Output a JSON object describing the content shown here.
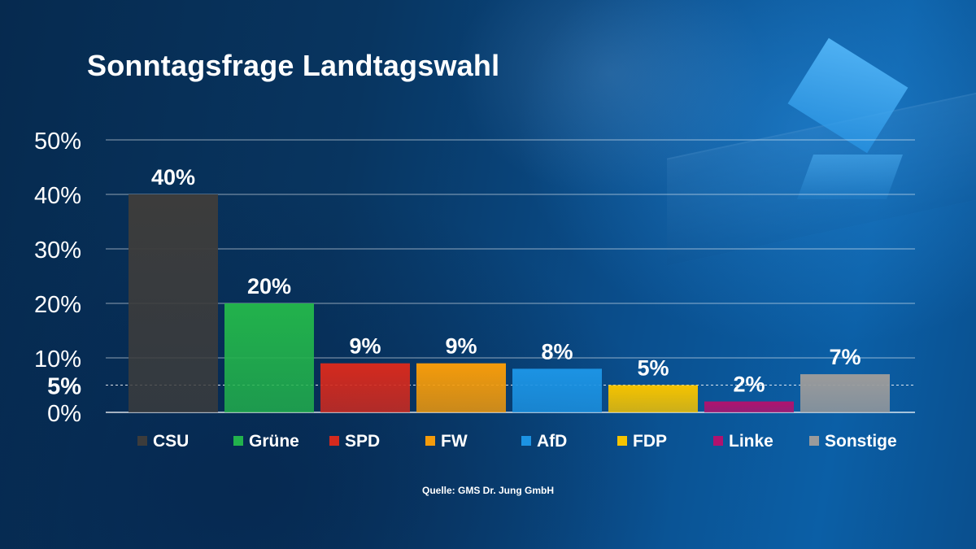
{
  "title": "Sonntagsfrage Landtagswahl",
  "source": "Quelle: GMS Dr. Jung GmbH",
  "chart_data": {
    "type": "bar",
    "title": "Sonntagsfrage Landtagswahl",
    "xlabel": "",
    "ylabel": "",
    "ylim": [
      0,
      50
    ],
    "grid": true,
    "legend_placement": "bottom",
    "yticks": [
      {
        "value": 0,
        "label": "0%"
      },
      {
        "value": 5,
        "label": "5%",
        "emphasis": true
      },
      {
        "value": 10,
        "label": "10%"
      },
      {
        "value": 20,
        "label": "20%"
      },
      {
        "value": 30,
        "label": "30%"
      },
      {
        "value": 40,
        "label": "40%"
      },
      {
        "value": 50,
        "label": "50%"
      }
    ],
    "threshold": {
      "value": 5,
      "style": "dashed"
    },
    "categories": [
      "CSU",
      "Grüne",
      "SPD",
      "FW",
      "AfD",
      "FDP",
      "Linke",
      "Sonstige"
    ],
    "values": [
      40,
      20,
      9,
      9,
      8,
      5,
      2,
      7
    ],
    "value_labels": [
      "40%",
      "20%",
      "9%",
      "9%",
      "8%",
      "5%",
      "2%",
      "7%"
    ],
    "colors": [
      "#3c3c3c",
      "#22b24c",
      "#d42a1e",
      "#f49b0b",
      "#1c93e3",
      "#f5c300",
      "#b0126e",
      "#9b9b9b"
    ]
  }
}
